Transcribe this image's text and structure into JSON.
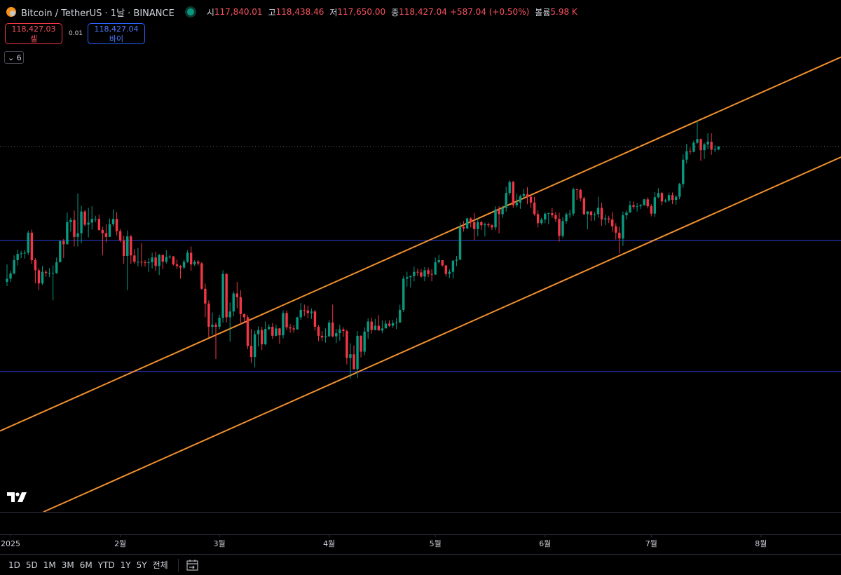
{
  "header": {
    "symbol": "Bitcoin / TetherUS · 1날 · BINANCE",
    "ohlc": [
      {
        "label": "시",
        "value": "117,840.01"
      },
      {
        "label": "고",
        "value": "118,438.46"
      },
      {
        "label": "저",
        "value": "117,650.00"
      },
      {
        "label": "종",
        "value": "118,427.04"
      }
    ],
    "change": "+587.04 (+0.50%)",
    "volume_label": "볼륨",
    "volume": "5.98 K"
  },
  "trade": {
    "sell_price": "118,427.03",
    "sell_label": "셀",
    "spread": "0.01",
    "buy_price": "118,427.04",
    "buy_label": "바이"
  },
  "indicators_count": "6",
  "timeframes": [
    "1D",
    "5D",
    "1M",
    "3M",
    "6M",
    "YTD",
    "1Y",
    "5Y",
    "전체"
  ],
  "chart_data": {
    "type": "candlestick",
    "up_color": "#089981",
    "down_color": "#f23645",
    "xlim": [
      -1.98,
      235.6
    ],
    "ylim": [
      49300,
      146100
    ],
    "xticks": [
      {
        "value": 1,
        "label": "2025"
      },
      {
        "value": 32,
        "label": "2월"
      },
      {
        "value": 60,
        "label": "3월"
      },
      {
        "value": 91,
        "label": "4월"
      },
      {
        "value": 121,
        "label": "5월"
      },
      {
        "value": 152,
        "label": "6월"
      },
      {
        "value": 182,
        "label": "7월"
      },
      {
        "value": 213,
        "label": "8월"
      }
    ],
    "hlines": [
      {
        "value": 100660,
        "color": "#2a3bd6"
      },
      {
        "value": 75860,
        "color": "#2a3bd6"
      }
    ],
    "trendlines": [
      {
        "color": "#f0902e",
        "x": [
          -1.98,
          235.6
        ],
        "y": [
          64600,
          135300
        ]
      },
      {
        "color": "#f0902e",
        "x": [
          10.3,
          235.6
        ],
        "y": [
          49300,
          116400
        ]
      }
    ],
    "last_price_line": true,
    "open": [
      92800,
      93400,
      94400,
      96900,
      98100,
      98200,
      98300,
      102100,
      96900,
      95000,
      92500,
      94700,
      94500,
      94500,
      94500,
      96500,
      100500,
      99900,
      104100,
      104500,
      101300,
      102000,
      106100,
      103600,
      104000,
      104700,
      104700,
      102600,
      102000,
      101300,
      103700,
      104700,
      102400,
      100600,
      97700,
      101400,
      97800,
      96600,
      96600,
      96500,
      96400,
      96500,
      97400,
      95800,
      97900,
      96600,
      97500,
      97600,
      96100,
      95800,
      95500,
      96600,
      98300,
      96100,
      96600,
      96300,
      91500,
      88700,
      84300,
      84700,
      84300,
      86000,
      94300,
      86100,
      87200,
      90600,
      89900,
      86700,
      86100,
      80700,
      78600,
      82900,
      83700,
      81000,
      83900,
      84300,
      82600,
      84000,
      82700,
      86900,
      84200,
      84000,
      83800,
      86100,
      87500,
      87400,
      86900,
      87200,
      84300,
      82600,
      82300,
      82500,
      85100,
      82500,
      83100,
      83800,
      83500,
      78400,
      79100,
      76300,
      82600,
      79600,
      83400,
      85300,
      83700,
      84500,
      83600,
      84000,
      84900,
      84500,
      85000,
      85100,
      87500,
      93400,
      93700,
      93900,
      94700,
      94600,
      93800,
      95000,
      94300,
      94200,
      96500,
      96900,
      95900,
      94300,
      94700,
      96800,
      97000,
      103200,
      102900,
      104800,
      104100,
      102800,
      104100,
      103500,
      103700,
      103500,
      103100,
      106500,
      105600,
      106800,
      109600,
      111700,
      107300,
      107800,
      109000,
      109400,
      108900,
      107800,
      105600,
      103900,
      104600,
      105700,
      105800,
      105400,
      104700,
      101500,
      104300,
      105600,
      105700,
      110300,
      110200,
      108600,
      105600,
      106100,
      105400,
      105600,
      106800,
      104600,
      104800,
      104600,
      103300,
      102100,
      101000,
      105400,
      105900,
      107300,
      107000,
      107100,
      107300,
      108400,
      107100,
      105700,
      108800,
      109600,
      108000,
      108200,
      109200,
      108300,
      108900,
      111300,
      115900,
      117500,
      117400,
      119100,
      119800,
      117700,
      118800,
      119300,
      117800,
      117840.01
    ],
    "high": [
      96100,
      94900,
      97800,
      98900,
      98700,
      98800,
      102500,
      102700,
      97300,
      95400,
      95800,
      95000,
      95400,
      95900,
      97400,
      100700,
      100900,
      105900,
      104900,
      106300,
      109500,
      107200,
      106400,
      106800,
      107100,
      105300,
      105500,
      103200,
      103700,
      104800,
      106500,
      106000,
      102800,
      101500,
      102500,
      101700,
      99000,
      99200,
      100100,
      96900,
      97300,
      98300,
      98500,
      98100,
      97900,
      98800,
      97900,
      97700,
      97000,
      96000,
      97000,
      98800,
      99500,
      96900,
      96900,
      96500,
      92500,
      89300,
      87000,
      85100,
      86600,
      95000,
      94400,
      88900,
      91000,
      92800,
      91200,
      86800,
      86500,
      83900,
      83600,
      84400,
      84300,
      85300,
      84800,
      85000,
      84700,
      84100,
      87400,
      87400,
      84800,
      84600,
      86200,
      88800,
      88500,
      88300,
      87800,
      87500,
      84600,
      83500,
      84000,
      85600,
      88500,
      83900,
      84700,
      84200,
      83800,
      81200,
      80800,
      83500,
      82700,
      84200,
      85900,
      86000,
      85800,
      86500,
      85500,
      85500,
      85500,
      85600,
      86000,
      88500,
      93900,
      94700,
      94000,
      95700,
      95300,
      95200,
      95600,
      95500,
      95200,
      97400,
      97900,
      96900,
      96000,
      95200,
      96900,
      97700,
      104000,
      104300,
      104900,
      105000,
      105800,
      104900,
      104300,
      104000,
      104000,
      103700,
      107100,
      107100,
      107200,
      110800,
      112000,
      111900,
      109500,
      109300,
      110400,
      110700,
      109300,
      108900,
      106300,
      104900,
      105900,
      105900,
      106800,
      106000,
      105900,
      105000,
      105900,
      106400,
      110600,
      110400,
      110400,
      108900,
      106200,
      106200,
      106000,
      108900,
      107800,
      105500,
      105300,
      106000,
      103900,
      103200,
      106100,
      106300,
      108100,
      108000,
      107700,
      107500,
      108500,
      108800,
      107500,
      109800,
      110500,
      109800,
      108500,
      109700,
      109700,
      109200,
      111500,
      116900,
      118900,
      118200,
      119500,
      123200,
      119900,
      119100,
      120900,
      120900,
      118600,
      118438.46
    ],
    "low": [
      92000,
      92800,
      94200,
      95900,
      97300,
      97200,
      97900,
      96200,
      92500,
      91200,
      92200,
      93800,
      93700,
      89300,
      94300,
      96500,
      97300,
      99900,
      102300,
      99500,
      99500,
      100100,
      103300,
      101200,
      102700,
      104100,
      102500,
      97800,
      100300,
      101300,
      103300,
      101600,
      100300,
      96200,
      91200,
      96200,
      96200,
      95700,
      95700,
      95700,
      94700,
      95300,
      94900,
      94100,
      95200,
      96300,
      97200,
      95900,
      95200,
      93400,
      95200,
      96400,
      94900,
      95800,
      95900,
      91300,
      86100,
      82300,
      82800,
      78200,
      83800,
      85100,
      85100,
      81500,
      86300,
      87800,
      84700,
      85200,
      80100,
      77500,
      76600,
      80600,
      79900,
      80800,
      83600,
      82000,
      82500,
      81100,
      82100,
      83700,
      83200,
      83200,
      83800,
      85600,
      86300,
      85900,
      85800,
      83600,
      81600,
      81600,
      81300,
      82400,
      82300,
      81200,
      81700,
      82400,
      77200,
      74500,
      76200,
      74600,
      78500,
      78900,
      82000,
      83000,
      83600,
      83600,
      83100,
      84000,
      84300,
      84100,
      83900,
      85100,
      87100,
      91900,
      91700,
      92900,
      93900,
      93600,
      92900,
      93700,
      92900,
      94100,
      96300,
      95700,
      93800,
      93500,
      93400,
      95800,
      96900,
      102300,
      102800,
      103100,
      100700,
      101400,
      102600,
      101400,
      103100,
      102600,
      102600,
      102000,
      104900,
      106100,
      109200,
      106800,
      106900,
      106600,
      108700,
      107500,
      106800,
      105300,
      103100,
      103600,
      103900,
      103700,
      104900,
      104100,
      100400,
      101100,
      103800,
      104900,
      105300,
      108300,
      108000,
      105400,
      102700,
      104300,
      104400,
      104900,
      103400,
      103500,
      103900,
      102300,
      100800,
      98200,
      99600,
      104600,
      105900,
      106600,
      106100,
      106600,
      107200,
      106700,
      105200,
      105100,
      108600,
      107300,
      107800,
      107900,
      107500,
      107400,
      108400,
      110600,
      115200,
      116900,
      117300,
      118900,
      115700,
      116000,
      117900,
      116800,
      117300,
      117650
    ],
    "close": [
      93400,
      94400,
      96900,
      98100,
      98200,
      98300,
      102100,
      96900,
      95000,
      92500,
      94700,
      94500,
      94500,
      94500,
      96500,
      100500,
      99900,
      104100,
      104500,
      101300,
      102000,
      106100,
      103600,
      104000,
      104700,
      104700,
      102600,
      102000,
      101300,
      103700,
      104700,
      102400,
      100600,
      97700,
      101400,
      97800,
      96600,
      96600,
      96500,
      96400,
      96500,
      97400,
      95800,
      97900,
      96600,
      97500,
      97600,
      96100,
      95800,
      95500,
      96600,
      98300,
      96100,
      96600,
      96300,
      91500,
      88700,
      84300,
      84700,
      84300,
      86000,
      94300,
      86100,
      87200,
      90600,
      89900,
      86700,
      86100,
      80700,
      78600,
      82900,
      83700,
      81000,
      83900,
      84300,
      82600,
      84000,
      82700,
      86900,
      84200,
      84000,
      83800,
      86100,
      87500,
      87400,
      86900,
      87200,
      84300,
      82600,
      82300,
      82500,
      85100,
      82500,
      83100,
      83800,
      83500,
      78400,
      79100,
      76300,
      82600,
      79600,
      83400,
      85300,
      83700,
      84500,
      83600,
      84000,
      84900,
      84500,
      85000,
      85100,
      87500,
      93400,
      93700,
      93900,
      94700,
      94600,
      93800,
      95000,
      94300,
      94200,
      96500,
      96900,
      95900,
      94300,
      94700,
      96800,
      97000,
      103200,
      102900,
      104800,
      104100,
      102800,
      104100,
      103500,
      103700,
      103500,
      103100,
      106500,
      105600,
      106800,
      109600,
      111700,
      107300,
      107800,
      109000,
      109400,
      108900,
      107800,
      105600,
      103900,
      104600,
      105700,
      105800,
      105400,
      104700,
      101500,
      104300,
      105600,
      105700,
      110300,
      110200,
      108600,
      105600,
      106100,
      105400,
      105600,
      106800,
      104600,
      104800,
      104600,
      103300,
      102100,
      101000,
      105400,
      105900,
      107300,
      107000,
      107100,
      107300,
      108400,
      107100,
      105700,
      108800,
      109600,
      108000,
      108200,
      109200,
      108300,
      108900,
      111300,
      115900,
      117500,
      117400,
      119100,
      119800,
      117700,
      118800,
      119300,
      117800,
      117900,
      118427.04
    ]
  }
}
